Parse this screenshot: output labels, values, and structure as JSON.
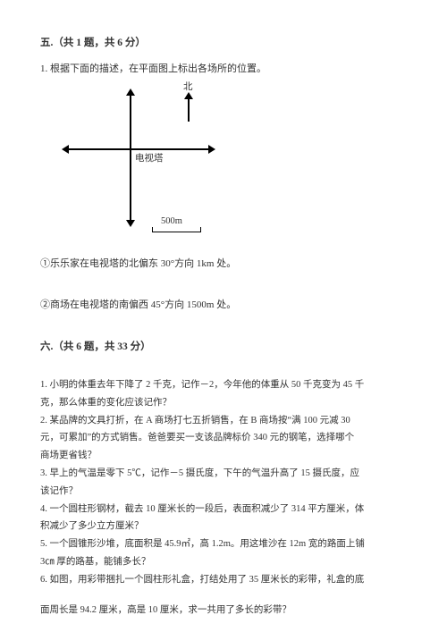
{
  "section5": {
    "header": "五.（共 1 题，共 6 分）",
    "q1": "1. 根据下面的描述，在平面图上标出各场所的位置。",
    "diagram": {
      "north_label": "北",
      "tower_label": "电视塔",
      "scale_label": "500m"
    },
    "sub1": "①乐乐家在电视塔的北偏东 30°方向 1km 处。",
    "sub2": "②商场在电视塔的南偏西 45°方向 1500m 处。"
  },
  "section6": {
    "header": "六.（共 6 题，共 33 分）",
    "q1a": "1. 小明的体重去年下降了 2 千克，记作－2，今年他的体重从 50 千克变为 45 千",
    "q1b": "克，那么体重的变化应该记作？",
    "q2a": "2. 某品牌的文具打折，在 A 商场打七五折销售，在 B 商场按“满 100 元减 30",
    "q2b": "元，可累加”的方式销售。爸爸要买一支该品牌标价 340 元的钢笔，选择哪个",
    "q2c": "商场更省钱？",
    "q3a": "3. 早上的气温是零下 5℃，记作－5 摄氏度，下午的气温升高了 15 摄氏度，应",
    "q3b": "该记作？",
    "q4a": "4. 一个圆柱形钢材，截去 10 厘米长的一段后，表面积减少了 314 平方厘米，体",
    "q4b": "积减少了多少立方厘米？",
    "q5a": "5. 一个圆锥形沙堆，底面积是 45.9㎡，高 1.2m。用这堆沙在 12m 宽的路面上铺",
    "q5b": "3㎝ 厚的路基，能铺多长？",
    "q6a": "6. 如图，用彩带捆扎一个圆柱形礼盒，打结处用了 35 厘米长的彩带，礼盒的底",
    "q6b": "面周长是 94.2 厘米，高是 10 厘米，求一共用了多长的彩带？"
  }
}
